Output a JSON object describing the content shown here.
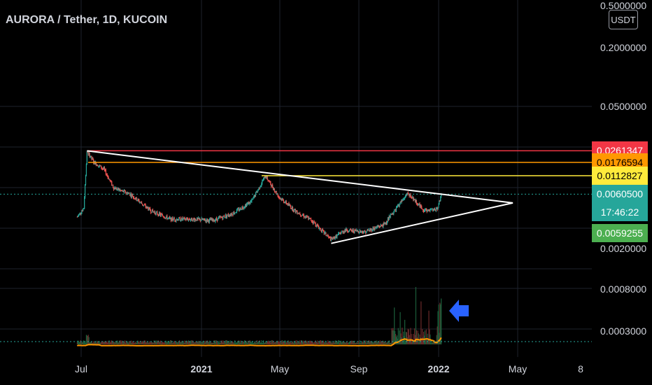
{
  "header": {
    "title": "AURORA / Tether, 1D, KUCOIN",
    "unit_badge": "USDT"
  },
  "price_scale": {
    "ticks": [
      "0.5000000",
      "0.2000000",
      "0.0500000",
      "0.0020000",
      "0.0008000",
      "0.0003000"
    ]
  },
  "time_axis": {
    "ticks": [
      "Jul",
      "2021",
      "May",
      "Sep",
      "2022",
      "May",
      "8"
    ]
  },
  "price_labels": {
    "red": "0.0261347",
    "orange": "0.0176594",
    "yellow": "0.0112827",
    "current": "0.0060500",
    "countdown": "17:46:22",
    "green_alt": "0.0059255"
  },
  "colors": {
    "red_line": "#f23645",
    "orange_line": "#ff9800",
    "yellow_line": "#ffeb3b",
    "current_line": "#26a69a",
    "green_alt": "#4caf50",
    "trend_line": "#ffffff",
    "candle_up": "#26a69a",
    "candle_down": "#ef5350",
    "volume_ma": "#ff9800",
    "arrow": "#2962ff"
  },
  "chart_data": {
    "type": "candlestick",
    "symbol": "AURORA / Tether",
    "interval": "1D",
    "exchange": "KUCOIN",
    "scale": "log",
    "horizontal_levels": [
      0.0261347,
      0.0176594,
      0.0112827
    ],
    "last_price": 0.00605,
    "close_price_series_approx": [
      [
        "2020-06-25",
        0.0028
      ],
      [
        "2020-07-05",
        0.0038
      ],
      [
        "2020-07-10",
        0.026
      ],
      [
        "2020-07-20",
        0.018
      ],
      [
        "2020-08-05",
        0.014
      ],
      [
        "2020-08-20",
        0.0075
      ],
      [
        "2020-09-15",
        0.006
      ],
      [
        "2020-10-15",
        0.0035
      ],
      [
        "2020-11-15",
        0.0026
      ],
      [
        "2020-12-15",
        0.0026
      ],
      [
        "2021-01-20",
        0.0025
      ],
      [
        "2021-02-20",
        0.0032
      ],
      [
        "2021-03-20",
        0.0048
      ],
      [
        "2021-04-10",
        0.0112
      ],
      [
        "2021-05-01",
        0.0055
      ],
      [
        "2021-05-25",
        0.0035
      ],
      [
        "2021-06-20",
        0.0025
      ],
      [
        "2021-07-20",
        0.0013
      ],
      [
        "2021-08-10",
        0.0018
      ],
      [
        "2021-09-10",
        0.0017
      ],
      [
        "2021-10-10",
        0.0022
      ],
      [
        "2021-11-05",
        0.0048
      ],
      [
        "2021-11-15",
        0.0062
      ],
      [
        "2021-12-10",
        0.0035
      ],
      [
        "2021-12-30",
        0.0036
      ],
      [
        "2022-01-05",
        0.00605
      ]
    ]
  }
}
